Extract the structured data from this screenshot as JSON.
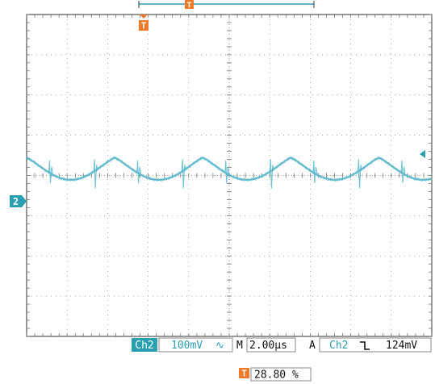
{
  "colors": {
    "trace": "#5ab8cc",
    "accent": "#2a9fb0",
    "trigger": "#f07a28",
    "grid": "#777777"
  },
  "icons": {
    "trigger_marker": "T-glyph",
    "channel_marker": "ch2-badge",
    "trigger_level_arrow": "left-arrow",
    "slope": "falling-edge"
  },
  "channel_marker": {
    "label": "2"
  },
  "trigger_position_marker": {
    "label": "T"
  },
  "status_bar": {
    "channel": "Ch2",
    "scale": "100mV",
    "coupling_symbol": "∿",
    "timebase_prefix": "M",
    "timebase": "2.00µs",
    "trigger_prefix": "A",
    "trigger_source": "Ch2",
    "trigger_slope_symbol": "⌐",
    "trigger_level": "124mV"
  },
  "trigger_readout": {
    "label": "T",
    "value": "28.80 %"
  },
  "chart_data": {
    "type": "line",
    "grid": true,
    "divisions_x": 10,
    "divisions_y": 8,
    "trigger_position_fraction": 0.288,
    "waveform": {
      "periods_on_screen": 4.6,
      "baseline_div": 0.0,
      "peak_div": 0.0,
      "trough_div": -0.55,
      "shape": "rectified-sine with switching spikes"
    }
  }
}
